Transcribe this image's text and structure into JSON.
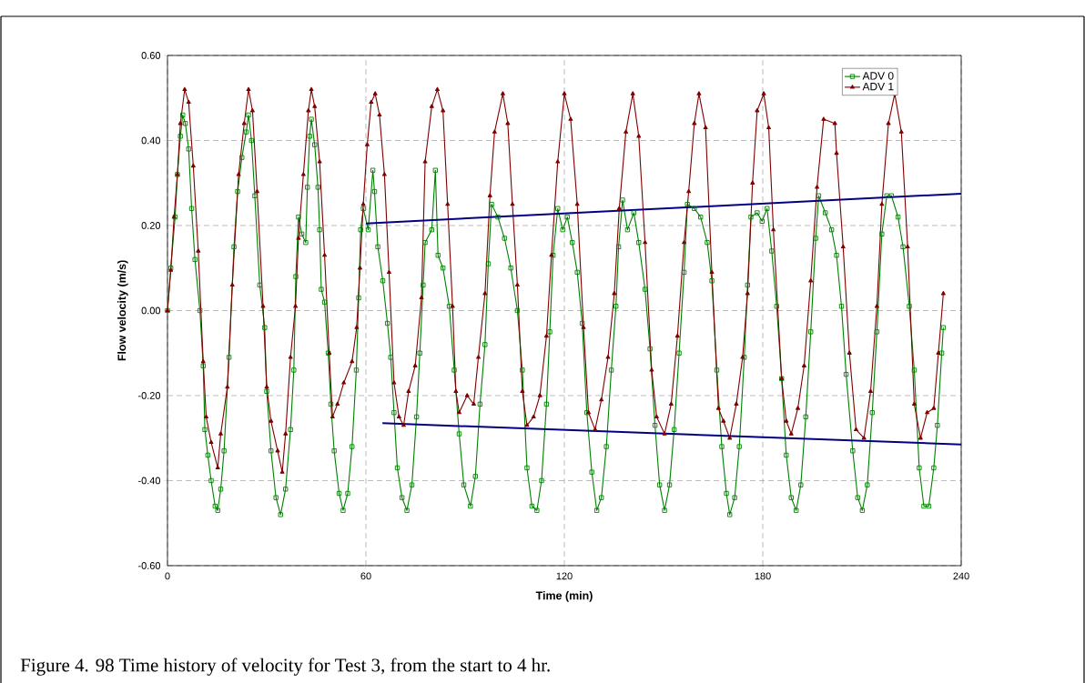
{
  "chart_data": {
    "type": "line",
    "xlabel": "Time (min)",
    "ylabel": "Flow velocity (m/s)",
    "annotations": [
      "Figure 4. 98   Time history of velocity for Test 3, from the start to 4 hr."
    ],
    "xlim": [
      0,
      240
    ],
    "xticks": [
      0,
      60,
      120,
      180,
      240
    ],
    "ylim": [
      -0.6,
      0.6
    ],
    "yticks": [
      {
        "value": -0.6,
        "label": "-0.60"
      },
      {
        "value": -0.4,
        "label": "-0.40"
      },
      {
        "value": -0.2,
        "label": "-0.20"
      },
      {
        "value": 0,
        "label": "0.00"
      },
      {
        "value": 0.2,
        "label": "0.20"
      },
      {
        "value": 0.4,
        "label": "0.40"
      },
      {
        "value": 0.6,
        "label": "0.60"
      }
    ],
    "grid": true,
    "legend": "top right",
    "line_style": "solid",
    "series": [
      {
        "name": "ADV 0",
        "color": "#008000",
        "marker": "square",
        "x": [
          0,
          1,
          2.3,
          3,
          3.9,
          4.6,
          5.4,
          6.4,
          7.3,
          8.3,
          9.8,
          10.8,
          11.3,
          12.2,
          13.2,
          14.4,
          15.2,
          16.1,
          17.1,
          18.6,
          20.1,
          21.2,
          22.5,
          23.8,
          24.5,
          25.4,
          26.4,
          27.9,
          29.4,
          30,
          31.3,
          32.8,
          34.2,
          35.7,
          37.2,
          38.2,
          38.8,
          39.6,
          40.6,
          41.8,
          42.3,
          43,
          43.5,
          44.5,
          45.5,
          46,
          46.5,
          47.5,
          48.6,
          49.4,
          50.4,
          51.9,
          53.1,
          54.5,
          55.8,
          57.1,
          57.8,
          58.4,
          59.2,
          60.7,
          62.1,
          62.6,
          63.6,
          65.1,
          66.5,
          67.5,
          68.5,
          69.5,
          70.9,
          72.4,
          73.9,
          75.3,
          76.3,
          77.3,
          77.9,
          79.9,
          81,
          81.8,
          83.3,
          85.2,
          86.7,
          88.2,
          89.6,
          91.6,
          93.1,
          94.5,
          96,
          97,
          98,
          99.9,
          101.9,
          103.8,
          105.8,
          107.3,
          108.7,
          110.2,
          111.7,
          113.1,
          114.6,
          115.6,
          116.6,
          118,
          119.5,
          120.9,
          122.4,
          123.9,
          125.4,
          126.8,
          128.3,
          129.8,
          131.2,
          132.7,
          134.2,
          135.6,
          136.4,
          137.6,
          139.1,
          141,
          142.5,
          144.4,
          145.9,
          147.4,
          148.8,
          150.3,
          151.8,
          153.2,
          154.7,
          156.2,
          157.2,
          159.3,
          161.2,
          163.2,
          164.6,
          166.1,
          167.6,
          169,
          170,
          171.5,
          172.9,
          174.4,
          175.4,
          176.4,
          178.3,
          179.8,
          181.3,
          182.7,
          184.2,
          185.7,
          187.1,
          188.6,
          190.1,
          191.5,
          193,
          194.5,
          196,
          196.9,
          198.9,
          200.8,
          202.3,
          203.8,
          205.2,
          207.2,
          208.7,
          210.1,
          211.6,
          213.1,
          214.5,
          216,
          217.5,
          218.9,
          220.9,
          222.4,
          224.3,
          225.8,
          227.3,
          228.7,
          230.2,
          231.7,
          232.8,
          234.1,
          234.6
        ],
        "values": [
          0,
          0.1,
          0.22,
          0.32,
          0.41,
          0.46,
          0.44,
          0.38,
          0.24,
          0.12,
          0.0,
          -0.13,
          -0.28,
          -0.34,
          -0.4,
          -0.46,
          -0.47,
          -0.42,
          -0.33,
          -0.11,
          0.15,
          0.28,
          0.36,
          0.42,
          0.46,
          0.4,
          0.27,
          0.06,
          -0.04,
          -0.19,
          -0.33,
          -0.44,
          -0.48,
          -0.42,
          -0.28,
          -0.14,
          0.08,
          0.22,
          0.18,
          0.16,
          0.29,
          0.41,
          0.45,
          0.39,
          0.29,
          0.19,
          0.05,
          0.02,
          -0.1,
          -0.22,
          -0.33,
          -0.43,
          -0.47,
          -0.43,
          -0.32,
          -0.14,
          0.03,
          0.19,
          0.24,
          0.19,
          0.33,
          0.28,
          0.15,
          0.07,
          -0.03,
          -0.11,
          -0.24,
          -0.37,
          -0.44,
          -0.47,
          -0.41,
          -0.25,
          -0.1,
          0.06,
          0.16,
          0.19,
          0.33,
          0.13,
          0.1,
          0.01,
          -0.14,
          -0.29,
          -0.41,
          -0.46,
          -0.39,
          -0.22,
          -0.08,
          0.11,
          0.25,
          0.22,
          0.17,
          0.1,
          0.0,
          -0.14,
          -0.37,
          -0.46,
          -0.47,
          -0.4,
          -0.22,
          -0.05,
          0.13,
          0.24,
          0.19,
          0.22,
          0.16,
          0.09,
          -0.03,
          -0.24,
          -0.38,
          -0.47,
          -0.44,
          -0.32,
          -0.14,
          0.01,
          0.15,
          0.26,
          0.19,
          0.23,
          0.16,
          0.05,
          -0.09,
          -0.27,
          -0.41,
          -0.47,
          -0.41,
          -0.28,
          -0.1,
          0.09,
          0.25,
          0.24,
          0.22,
          0.16,
          0.07,
          -0.14,
          -0.32,
          -0.43,
          -0.48,
          -0.44,
          -0.32,
          -0.11,
          0.06,
          0.22,
          0.23,
          0.21,
          0.24,
          0.14,
          0.01,
          -0.16,
          -0.34,
          -0.44,
          -0.47,
          -0.41,
          -0.25,
          -0.05,
          0.17,
          0.27,
          0.23,
          0.19,
          0.13,
          0.01,
          -0.15,
          -0.33,
          -0.44,
          -0.47,
          -0.41,
          -0.24,
          -0.05,
          0.18,
          0.27,
          0.27,
          0.22,
          0.15,
          0.01,
          -0.14,
          -0.37,
          -0.46,
          -0.46,
          -0.37,
          -0.27,
          -0.1,
          -0.04
        ]
      },
      {
        "name": "ADV 1",
        "color": "#800000",
        "marker": "triangle",
        "x": [
          0,
          1,
          2,
          3,
          3.9,
          5.2,
          6.4,
          7.8,
          9.3,
          10.8,
          11.7,
          13.2,
          15.2,
          16.1,
          18.1,
          19.6,
          21.5,
          23.2,
          24.5,
          25.7,
          27.1,
          28.9,
          30,
          31.3,
          33.3,
          34.7,
          35.7,
          37.2,
          38.7,
          39.6,
          41.1,
          42.6,
          43.5,
          44.5,
          46,
          47.5,
          48.9,
          49.9,
          51.4,
          53.3,
          55.8,
          57.2,
          58.2,
          59.2,
          60.4,
          61.6,
          62.8,
          64.1,
          65.6,
          67,
          68.5,
          70,
          71.4,
          72.9,
          74.9,
          76.8,
          77.9,
          79.9,
          81.6,
          83.3,
          84.7,
          86.2,
          87.2,
          88.2,
          90.6,
          92.6,
          94,
          96,
          97.5,
          98.9,
          101.4,
          102.9,
          104.3,
          105.8,
          107.3,
          108.7,
          110.7,
          112.6,
          114.6,
          116.1,
          118,
          120,
          121.9,
          123.9,
          125.8,
          127.3,
          129.3,
          131.2,
          133.2,
          135.1,
          136.6,
          138.6,
          140.7,
          142.5,
          144.4,
          146.4,
          147.9,
          150.3,
          152.3,
          154.2,
          156.2,
          157.6,
          159.3,
          160.7,
          162.7,
          164.6,
          166.6,
          168.1,
          170,
          172,
          173.9,
          175.4,
          176.9,
          178.3,
          180.3,
          181.8,
          183.2,
          185.7,
          187.1,
          188.6,
          190.6,
          192.5,
          194.5,
          196.4,
          198.4,
          201.8,
          202.3,
          204.3,
          206.2,
          208.2,
          210.6,
          212.6,
          214.5,
          216,
          218,
          219.9,
          221.9,
          223.8,
          225.8,
          227.7,
          229.7,
          231.7,
          233.1,
          234.6
        ],
        "values": [
          0,
          0.095,
          0.22,
          0.32,
          0.44,
          0.52,
          0.49,
          0.34,
          0.14,
          -0.12,
          -0.25,
          -0.31,
          -0.37,
          -0.29,
          -0.18,
          0.06,
          0.32,
          0.44,
          0.52,
          0.47,
          0.28,
          0.01,
          -0.18,
          -0.26,
          -0.33,
          -0.38,
          -0.29,
          -0.11,
          0.01,
          0.17,
          0.32,
          0.47,
          0.52,
          0.48,
          0.35,
          0.13,
          -0.1,
          -0.25,
          -0.22,
          -0.17,
          -0.12,
          -0.04,
          0.1,
          0.25,
          0.39,
          0.49,
          0.51,
          0.46,
          0.32,
          0.09,
          -0.17,
          -0.25,
          -0.27,
          -0.19,
          -0.13,
          0.03,
          0.35,
          0.48,
          0.52,
          0.47,
          0.25,
          0.01,
          -0.19,
          -0.24,
          -0.2,
          -0.22,
          -0.11,
          0.04,
          0.27,
          0.42,
          0.51,
          0.44,
          0.25,
          0.06,
          -0.19,
          -0.27,
          -0.25,
          -0.2,
          -0.06,
          0.13,
          0.35,
          0.51,
          0.45,
          0.25,
          -0.04,
          -0.24,
          -0.28,
          -0.21,
          -0.11,
          0.04,
          0.24,
          0.42,
          0.51,
          0.41,
          0.16,
          -0.14,
          -0.25,
          -0.29,
          -0.22,
          -0.06,
          0.16,
          0.28,
          0.44,
          0.51,
          0.43,
          0.09,
          -0.23,
          -0.26,
          -0.3,
          -0.22,
          -0.11,
          0.04,
          0.3,
          0.47,
          0.51,
          0.43,
          0.19,
          -0.16,
          -0.26,
          -0.29,
          -0.23,
          -0.13,
          0.07,
          0.29,
          0.45,
          0.44,
          0.37,
          0.15,
          -0.1,
          -0.28,
          -0.3,
          -0.19,
          0.01,
          0.25,
          0.44,
          0.51,
          0.42,
          0.15,
          -0.22,
          -0.3,
          -0.24,
          -0.23,
          -0.1,
          0.04
        ]
      },
      {
        "type": "line",
        "color": "#000080",
        "x": [
          60,
          240
        ],
        "values": [
          0.205,
          0.275
        ]
      },
      {
        "type": "line",
        "color": "#000080",
        "x": [
          65,
          240
        ],
        "values": [
          -0.265,
          -0.315
        ]
      }
    ]
  }
}
